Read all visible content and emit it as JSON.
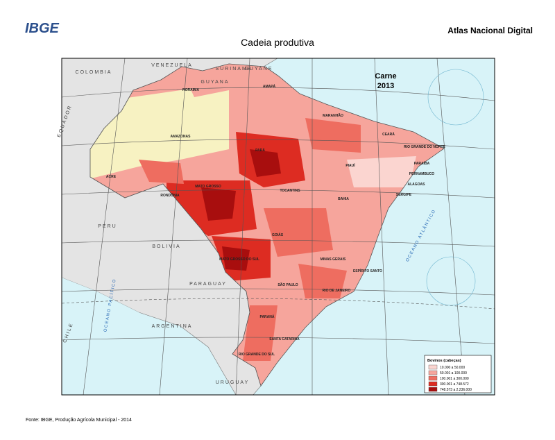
{
  "header": {
    "logo": "IBGE",
    "atlas": "Atlas Nacional Digital",
    "title": "Cadeia produtiva"
  },
  "map": {
    "title": "Carne",
    "year": "2013",
    "countries": [
      "COLOMBIA",
      "VENEZUELA",
      "GUYANA",
      "SURINAME",
      "GUYANE",
      "EQUADOR",
      "PERU",
      "BOLIVIA",
      "PARAGUAY",
      "ARGENTINA",
      "URUGUAY",
      "CHILE"
    ],
    "oceans": [
      "OCEANO PACÍFICO",
      "OCEANO ATLÂNTICO"
    ],
    "states": [
      "AMAZONAS",
      "PARÁ",
      "MARANHÃO",
      "PIAUÍ",
      "CEARÁ",
      "RIO GRANDE DO NORTE",
      "PARAÍBA",
      "PERNAMBUCO",
      "ALAGOAS",
      "SERGIPE",
      "BAHIA",
      "TOCANTINS",
      "MATO GROSSO",
      "RONDÔNIA",
      "ACRE",
      "RORAIMA",
      "AMAPÁ",
      "GOIÁS",
      "MINAS GERAIS",
      "ESPÍRITO SANTO",
      "RIO DE JANEIRO",
      "SÃO PAULO",
      "PARANÁ",
      "SANTA CATARINA",
      "RIO GRANDE DO SUL",
      "MATO GROSSO DO SUL"
    ]
  },
  "legend": {
    "title": "Bovinos (cabeças)",
    "classes": [
      {
        "label": "10.000 a 50.000",
        "color": "#fbd5d0"
      },
      {
        "label": "50.001 a 100.000",
        "color": "#f6a59c"
      },
      {
        "label": "100.001 a 300.000",
        "color": "#ee6d60"
      },
      {
        "label": "300.001 a 748.572",
        "color": "#dd2c22"
      },
      {
        "label": "748.573 a 2.236.000",
        "color": "#a80e0e"
      }
    ]
  },
  "source": "Fonte: IBGE, Produção Agrícola Municipal - 2014"
}
